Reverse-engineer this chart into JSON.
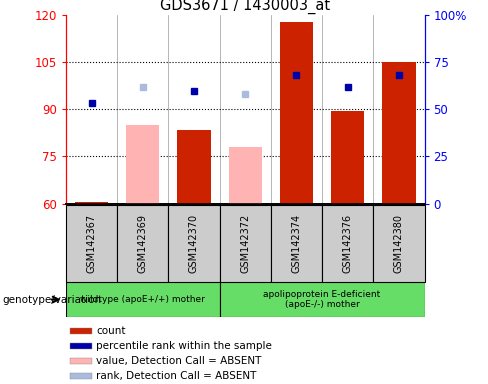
{
  "title": "GDS3671 / 1430003_at",
  "samples": [
    "GSM142367",
    "GSM142369",
    "GSM142370",
    "GSM142372",
    "GSM142374",
    "GSM142376",
    "GSM142380"
  ],
  "bar_values": [
    60.5,
    null,
    83.5,
    null,
    118.0,
    89.5,
    105.0
  ],
  "bar_absent_values": [
    null,
    85.0,
    null,
    78.0,
    null,
    null,
    null
  ],
  "dot_rank_values": [
    92.0,
    null,
    96.0,
    null,
    101.0,
    97.0,
    101.0
  ],
  "dot_rank_absent": [
    null,
    97.0,
    null,
    95.0,
    null,
    null,
    null
  ],
  "ylim_left": [
    60,
    120
  ],
  "ylim_right": [
    0,
    100
  ],
  "yticks_left": [
    60,
    75,
    90,
    105,
    120
  ],
  "yticks_right": [
    0,
    25,
    50,
    75,
    100
  ],
  "bar_color": "#CC2200",
  "bar_absent_color": "#FFB3B3",
  "dot_present_color": "#0000AA",
  "dot_absent_color": "#AABBDD",
  "group1_label": "wildtype (apoE+/+) mother",
  "group2_label": "apolipoprotein E-deficient\n(apoE-/-) mother",
  "group_label_prefix": "genotype/variation",
  "legend_items": [
    {
      "label": "count",
      "color": "#CC2200"
    },
    {
      "label": "percentile rank within the sample",
      "color": "#0000AA"
    },
    {
      "label": "value, Detection Call = ABSENT",
      "color": "#FFB3B3"
    },
    {
      "label": "rank, Detection Call = ABSENT",
      "color": "#AABBDD"
    }
  ],
  "bg_color": "#FFFFFF",
  "plot_bg_color": "#FFFFFF",
  "label_box_color": "#CCCCCC",
  "group_box_color": "#66DD66",
  "n_samples": 7
}
